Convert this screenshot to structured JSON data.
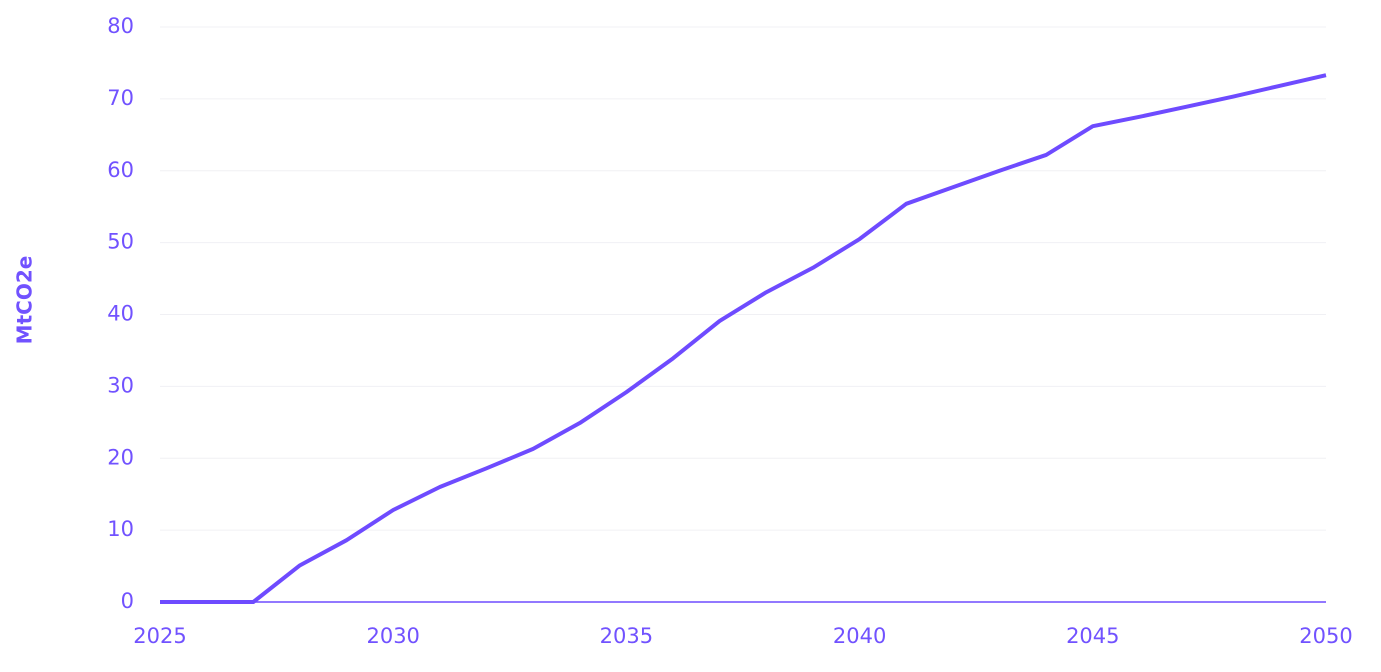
{
  "chart_data": {
    "type": "line",
    "y_label": "MtCO2e",
    "x": [
      2025,
      2026,
      2027,
      2028,
      2029,
      2030,
      2031,
      2032,
      2033,
      2034,
      2035,
      2036,
      2037,
      2038,
      2039,
      2040,
      2041,
      2042,
      2043,
      2044,
      2045,
      2046,
      2047,
      2048,
      2049,
      2050
    ],
    "series": [
      {
        "name": "MtCO2e",
        "color": "#6e4bff",
        "values": [
          0,
          0,
          0,
          5.1,
          8.6,
          12.8,
          16.0,
          18.6,
          21.3,
          24.9,
          29.2,
          33.9,
          39.1,
          43.1,
          46.5,
          50.5,
          55.4,
          57.7,
          60.0,
          62.2,
          66.2,
          67.5,
          68.9,
          70.3,
          71.8,
          73.3
        ]
      }
    ],
    "xlim": [
      2025,
      2050
    ],
    "xticks": [
      2025,
      2030,
      2035,
      2040,
      2045,
      2050
    ],
    "ylim": [
      0,
      80
    ],
    "yticks": [
      0,
      10,
      20,
      30,
      40,
      50,
      60,
      70,
      80
    ],
    "grid": true
  }
}
